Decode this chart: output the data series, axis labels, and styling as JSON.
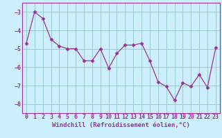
{
  "x": [
    0,
    1,
    2,
    3,
    4,
    5,
    6,
    7,
    8,
    9,
    10,
    11,
    12,
    13,
    14,
    15,
    16,
    17,
    18,
    19,
    20,
    21,
    22,
    23
  ],
  "y": [
    -4.7,
    -3.0,
    -3.35,
    -4.5,
    -4.85,
    -5.0,
    -5.0,
    -5.65,
    -5.65,
    -5.0,
    -6.05,
    -5.25,
    -4.8,
    -4.8,
    -4.7,
    -5.65,
    -6.8,
    -7.05,
    -7.8,
    -6.85,
    -7.05,
    -6.4,
    -7.1,
    -4.95
  ],
  "line_color": "#993399",
  "marker": "D",
  "marker_size": 2.5,
  "bg_color": "#cceeff",
  "grid_color": "#99cccc",
  "axis_color": "#993399",
  "xlabel": "Windchill (Refroidissement éolien,°C)",
  "xlabel_fontsize": 6.5,
  "tick_fontsize": 6,
  "ylim": [
    -8.5,
    -2.5
  ],
  "yticks": [
    -8,
    -7,
    -6,
    -5,
    -4,
    -3
  ],
  "xlim": [
    -0.5,
    23.5
  ],
  "xticks": [
    0,
    1,
    2,
    3,
    4,
    5,
    6,
    7,
    8,
    9,
    10,
    11,
    12,
    13,
    14,
    15,
    16,
    17,
    18,
    19,
    20,
    21,
    22,
    23
  ]
}
